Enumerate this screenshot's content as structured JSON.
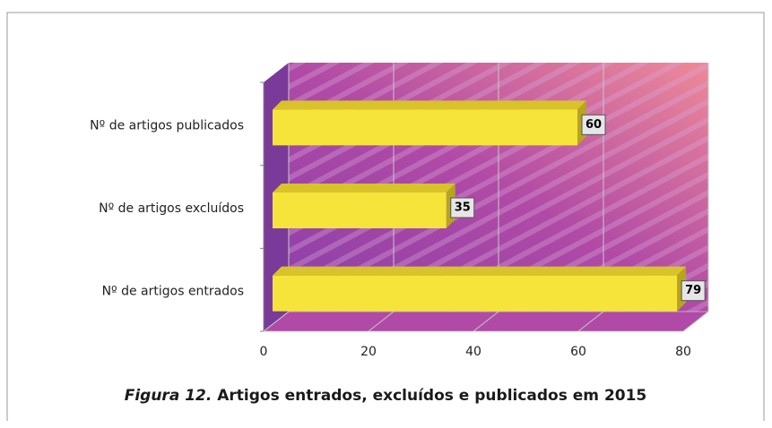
{
  "chart_data": {
    "type": "bar",
    "orientation": "horizontal",
    "figure_label": "Figura 12.",
    "title": "Artigos entrados, excluídos e publicados em 2015",
    "categories": [
      "Nº de artigos entrados",
      "Nº de artigos excluídos",
      "Nº de artigos publicados"
    ],
    "values": [
      79,
      35,
      60
    ],
    "color": "#f7e43a",
    "xlim": [
      0,
      80
    ],
    "xticks": [
      0,
      20,
      40,
      60,
      80
    ],
    "grid": true
  }
}
